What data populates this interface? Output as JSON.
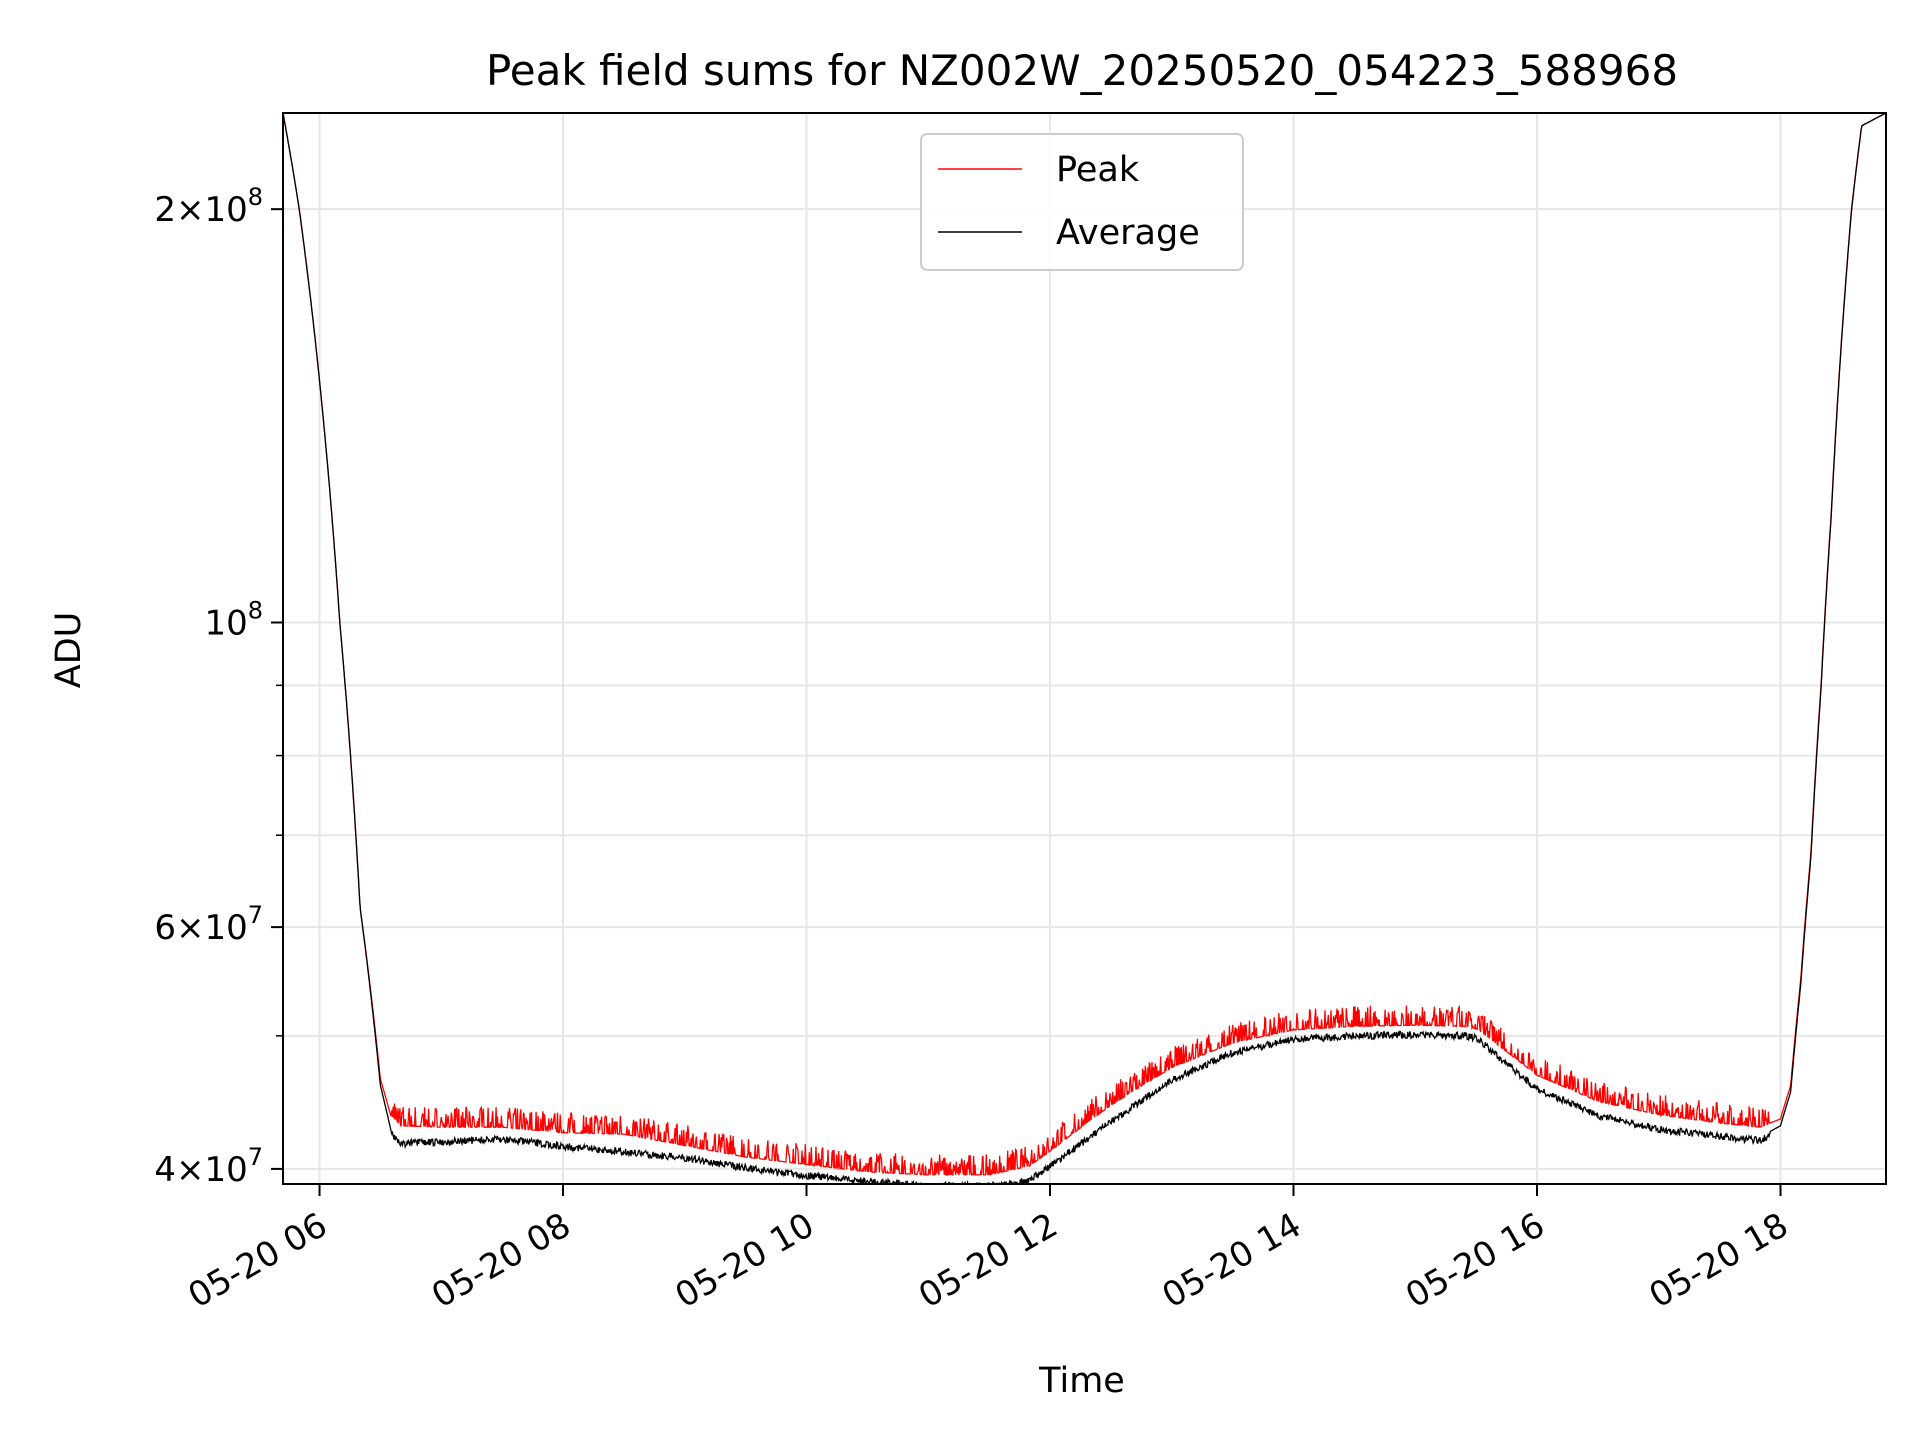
{
  "chart_data": {
    "type": "line",
    "title": "Peak field sums for NZ002W_20250520_054223_588968",
    "xlabel": "Time",
    "ylabel": "ADU",
    "yscale": "log",
    "xlim": [
      "2025-05-20 05:42",
      "2025-05-20 18:52"
    ],
    "ylim": [
      39000000,
      235000000
    ],
    "grid": true,
    "legend_position": "top-center",
    "x_ticks": [
      "2025-05-20 06:00",
      "2025-05-20 08:00",
      "2025-05-20 10:00",
      "2025-05-20 12:00",
      "2025-05-20 14:00",
      "2025-05-20 16:00",
      "2025-05-20 18:00"
    ],
    "x_tick_labels": [
      "05-20 06",
      "05-20 08",
      "05-20 10",
      "05-20 12",
      "05-20 14",
      "05-20 16",
      "05-20 18"
    ],
    "y_major_ticks": [
      {
        "value": 200000000,
        "mantissa": "2",
        "exponent": "8"
      },
      {
        "value": 100000000,
        "mantissa": "",
        "exponent": "8"
      },
      {
        "value": 60000000,
        "mantissa": "6",
        "exponent": "7"
      },
      {
        "value": 40000000,
        "mantissa": "4",
        "exponent": "7"
      }
    ],
    "y_minor_ticks": [
      50000000,
      70000000,
      80000000,
      90000000
    ],
    "series": [
      {
        "name": "Peak",
        "color": "#ff0000",
        "noise": "spiky",
        "x": [
          "2025-05-20 05:42",
          "2025-05-20 05:50",
          "2025-05-20 06:00",
          "2025-05-20 06:10",
          "2025-05-20 06:20",
          "2025-05-20 06:30",
          "2025-05-20 06:35",
          "2025-05-20 06:40",
          "2025-05-20 07:00",
          "2025-05-20 07:30",
          "2025-05-20 08:00",
          "2025-05-20 08:30",
          "2025-05-20 09:00",
          "2025-05-20 09:30",
          "2025-05-20 10:00",
          "2025-05-20 10:30",
          "2025-05-20 11:00",
          "2025-05-20 11:30",
          "2025-05-20 11:50",
          "2025-05-20 12:00",
          "2025-05-20 12:30",
          "2025-05-20 13:00",
          "2025-05-20 13:30",
          "2025-05-20 14:00",
          "2025-05-20 14:30",
          "2025-05-20 15:00",
          "2025-05-20 15:25",
          "2025-05-20 15:30",
          "2025-05-20 15:45",
          "2025-05-20 16:00",
          "2025-05-20 16:30",
          "2025-05-20 17:00",
          "2025-05-20 17:30",
          "2025-05-20 17:50",
          "2025-05-20 18:00",
          "2025-05-20 18:05",
          "2025-05-20 18:10",
          "2025-05-20 18:15",
          "2025-05-20 18:20",
          "2025-05-20 18:25",
          "2025-05-20 18:30",
          "2025-05-20 18:35",
          "2025-05-20 18:40",
          "2025-05-20 18:52"
        ],
        "y": [
          235000000,
          200000000,
          150000000,
          100000000,
          62000000,
          46500000,
          43800000,
          43000000,
          42900000,
          42900000,
          42500000,
          42400000,
          41600000,
          40800000,
          40300000,
          39800000,
          39600000,
          39600000,
          40200000,
          41200000,
          44500000,
          47400000,
          49400000,
          50500000,
          50800000,
          50900000,
          50800000,
          50600000,
          48700000,
          46800000,
          44800000,
          43800000,
          43200000,
          42900000,
          43500000,
          46000000,
          55000000,
          68000000,
          90000000,
          120000000,
          160000000,
          200000000,
          230000000,
          235000000
        ]
      },
      {
        "name": "Average",
        "color": "#000000",
        "noise": "dense",
        "x": [
          "2025-05-20 05:42",
          "2025-05-20 05:50",
          "2025-05-20 06:00",
          "2025-05-20 06:10",
          "2025-05-20 06:20",
          "2025-05-20 06:30",
          "2025-05-20 06:35",
          "2025-05-20 06:40",
          "2025-05-20 07:00",
          "2025-05-20 07:30",
          "2025-05-20 08:00",
          "2025-05-20 08:30",
          "2025-05-20 09:00",
          "2025-05-20 09:30",
          "2025-05-20 10:00",
          "2025-05-20 10:30",
          "2025-05-20 11:00",
          "2025-05-20 11:30",
          "2025-05-20 11:50",
          "2025-05-20 12:00",
          "2025-05-20 12:30",
          "2025-05-20 13:00",
          "2025-05-20 13:30",
          "2025-05-20 14:00",
          "2025-05-20 14:30",
          "2025-05-20 15:00",
          "2025-05-20 15:25",
          "2025-05-20 15:30",
          "2025-05-20 15:45",
          "2025-05-20 16:00",
          "2025-05-20 16:30",
          "2025-05-20 17:00",
          "2025-05-20 17:30",
          "2025-05-20 17:50",
          "2025-05-20 18:00",
          "2025-05-20 18:05",
          "2025-05-20 18:10",
          "2025-05-20 18:15",
          "2025-05-20 18:20",
          "2025-05-20 18:25",
          "2025-05-20 18:30",
          "2025-05-20 18:35",
          "2025-05-20 18:40",
          "2025-05-20 18:52"
        ],
        "y": [
          235000000,
          200000000,
          150000000,
          100000000,
          62000000,
          46000000,
          42800000,
          42000000,
          42100000,
          42300000,
          41800000,
          41400000,
          41000000,
          40300000,
          39800000,
          39400000,
          39100000,
          39100000,
          39500000,
          40400000,
          43500000,
          46700000,
          48900000,
          50000000,
          50300000,
          50400000,
          50300000,
          50100000,
          48000000,
          46000000,
          44000000,
          43000000,
          42500000,
          42200000,
          43000000,
          45500000,
          54500000,
          67500000,
          89500000,
          119500000,
          159500000,
          199500000,
          230000000,
          235000000
        ]
      }
    ]
  }
}
